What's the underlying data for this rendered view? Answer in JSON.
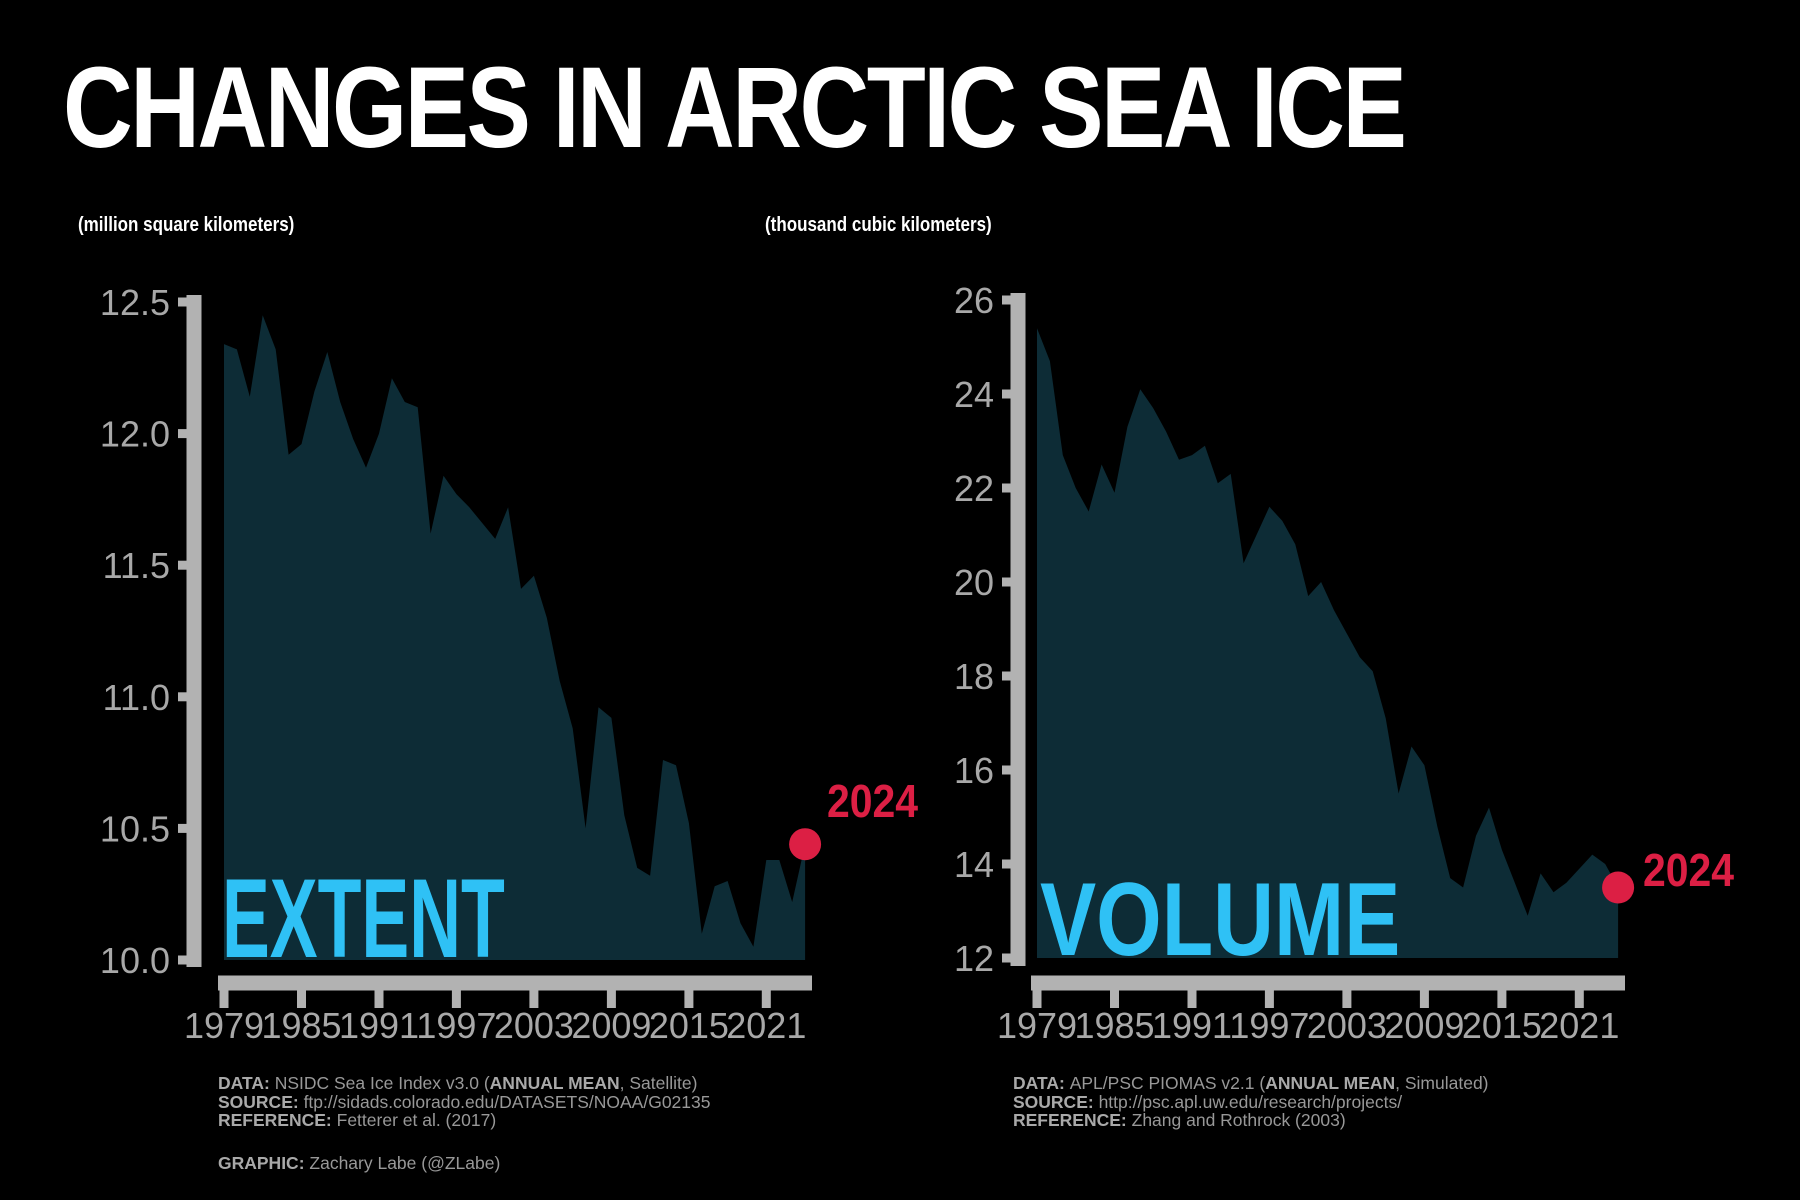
{
  "title": "CHANGES IN ARCTIC SEA ICE",
  "charts": [
    {
      "name": "EXTENT",
      "unit_label": "(million square kilometers)",
      "annotation": "2024"
    },
    {
      "name": "VOLUME",
      "unit_label": "(thousand cubic kilometers)",
      "annotation": "2024"
    }
  ],
  "chart_data": [
    {
      "type": "area",
      "title": "EXTENT",
      "unit": "million square kilometers",
      "ylim": [
        10.0,
        12.5
      ],
      "ytick_labels": [
        "12.5",
        "12.0",
        "11.5",
        "11.0",
        "10.5",
        "10.0"
      ],
      "ytick_values": [
        12.5,
        12.0,
        11.5,
        11.0,
        10.5,
        10.0
      ],
      "xticks": [
        1979,
        1985,
        1991,
        1997,
        2003,
        2009,
        2015,
        2021
      ],
      "years": [
        1979,
        1980,
        1981,
        1982,
        1983,
        1984,
        1985,
        1986,
        1987,
        1988,
        1989,
        1990,
        1991,
        1992,
        1993,
        1994,
        1995,
        1996,
        1997,
        1998,
        1999,
        2000,
        2001,
        2002,
        2003,
        2004,
        2005,
        2006,
        2007,
        2008,
        2009,
        2010,
        2011,
        2012,
        2013,
        2014,
        2015,
        2016,
        2017,
        2018,
        2019,
        2020,
        2021,
        2022,
        2023,
        2024
      ],
      "values": [
        12.34,
        12.32,
        12.14,
        12.45,
        12.32,
        11.92,
        11.96,
        12.16,
        12.31,
        12.12,
        11.98,
        11.87,
        12.0,
        12.21,
        12.12,
        12.1,
        11.62,
        11.84,
        11.77,
        11.72,
        11.66,
        11.6,
        11.72,
        11.41,
        11.46,
        11.3,
        11.06,
        10.88,
        10.5,
        10.96,
        10.92,
        10.55,
        10.35,
        10.32,
        10.76,
        10.74,
        10.52,
        10.1,
        10.28,
        10.3,
        10.14,
        10.05,
        10.38,
        10.38,
        10.22,
        10.44
      ],
      "highlight": {
        "year": 2024,
        "value": 10.44,
        "label": "2024"
      }
    },
    {
      "type": "area",
      "title": "VOLUME",
      "unit": "thousand cubic kilometers",
      "ylim": [
        12,
        26
      ],
      "ytick_labels": [
        "26",
        "24",
        "22",
        "20",
        "18",
        "16",
        "14",
        "12"
      ],
      "ytick_values": [
        26,
        24,
        22,
        20,
        18,
        16,
        14,
        12
      ],
      "xticks": [
        1979,
        1985,
        1991,
        1997,
        2003,
        2009,
        2015,
        2021
      ],
      "years": [
        1979,
        1980,
        1981,
        1982,
        1983,
        1984,
        1985,
        1986,
        1987,
        1988,
        1989,
        1990,
        1991,
        1992,
        1993,
        1994,
        1995,
        1996,
        1997,
        1998,
        1999,
        2000,
        2001,
        2002,
        2003,
        2004,
        2005,
        2006,
        2007,
        2008,
        2009,
        2010,
        2011,
        2012,
        2013,
        2014,
        2015,
        2016,
        2017,
        2018,
        2019,
        2020,
        2021,
        2022,
        2023,
        2024
      ],
      "values": [
        25.4,
        24.7,
        22.7,
        22.0,
        21.5,
        22.5,
        21.9,
        23.3,
        24.1,
        23.7,
        23.2,
        22.6,
        22.7,
        22.9,
        22.1,
        22.3,
        20.4,
        21.0,
        21.6,
        21.3,
        20.8,
        19.7,
        20.0,
        19.4,
        18.9,
        18.4,
        18.1,
        17.1,
        15.5,
        16.5,
        16.1,
        14.8,
        13.7,
        13.5,
        14.6,
        15.2,
        14.3,
        13.6,
        12.9,
        13.8,
        13.4,
        13.6,
        13.9,
        14.2,
        14.0,
        13.5
      ],
      "highlight": {
        "year": 2024,
        "value": 13.5,
        "label": "2024"
      }
    }
  ],
  "footers": {
    "left": {
      "lines": [
        [
          {
            "t": "DATA: ",
            "b": true
          },
          {
            "t": "NSIDC Sea Ice Index v3.0 ("
          },
          {
            "t": "ANNUAL MEAN",
            "b": true
          },
          {
            "t": ", Satellite)"
          }
        ],
        [
          {
            "t": "SOURCE: ",
            "b": true
          },
          {
            "t": "ftp://sidads.colorado.edu/DATASETS/NOAA/G02135"
          }
        ],
        [
          {
            "t": "REFERENCE: ",
            "b": true
          },
          {
            "t": "Fetterer et al. (2017)"
          }
        ]
      ],
      "credit": [
        {
          "t": "GRAPHIC: ",
          "b": true
        },
        {
          "t": "Zachary Labe (@ZLabe)"
        }
      ]
    },
    "right": {
      "lines": [
        [
          {
            "t": "DATA: ",
            "b": true
          },
          {
            "t": "APL/PSC PIOMAS v2.1 ("
          },
          {
            "t": "ANNUAL MEAN",
            "b": true
          },
          {
            "t": ", Simulated)"
          }
        ],
        [
          {
            "t": "SOURCE: ",
            "b": true
          },
          {
            "t": "http://psc.apl.uw.edu/research/projects/"
          }
        ],
        [
          {
            "t": "REFERENCE: ",
            "b": true
          },
          {
            "t": "Zhang and Rothrock (2003)"
          }
        ]
      ]
    }
  },
  "colors": {
    "background": "#000000",
    "area_fill": "#0d2c36",
    "axis_bar": "#b2b2b2",
    "tick_label": "#a8a8a8",
    "accent_cyan": "#2fc1f5",
    "accent_red": "#dc1f44",
    "title_text": "#ffffff",
    "footer_text": "#989898",
    "footer_bold": "#a9a9a9"
  }
}
